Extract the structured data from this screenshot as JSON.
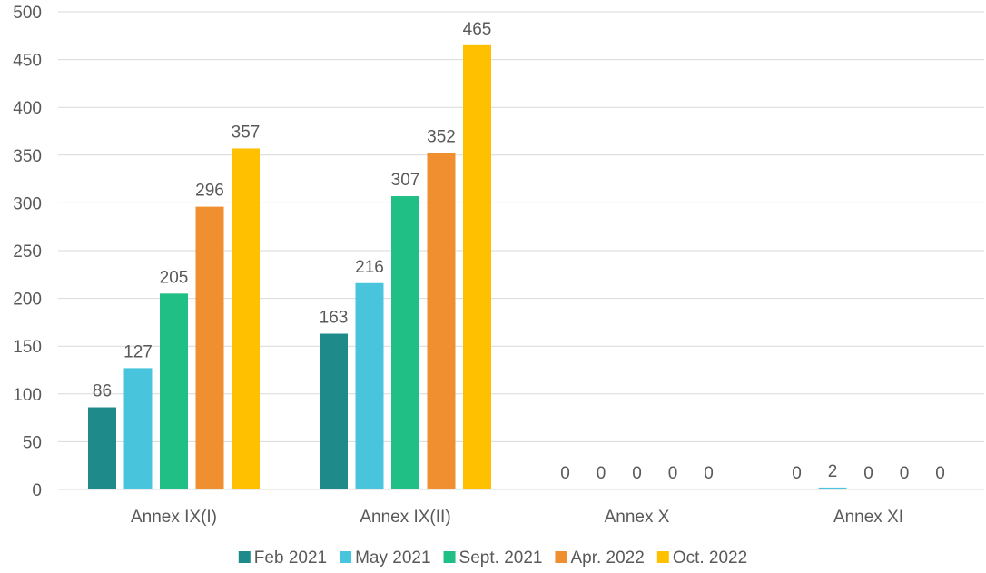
{
  "chart_data": {
    "type": "bar",
    "categories": [
      "Annex IX(I)",
      "Annex IX(II)",
      "Annex X",
      "Annex XI"
    ],
    "series": [
      {
        "name": "Feb 2021",
        "values": [
          86,
          163,
          0,
          0
        ],
        "color": "#1e8a8a"
      },
      {
        "name": "May 2021",
        "values": [
          127,
          216,
          0,
          2
        ],
        "color": "#48c4dc"
      },
      {
        "name": "Sept. 2021",
        "values": [
          205,
          307,
          0,
          0
        ],
        "color": "#1fbf85"
      },
      {
        "name": "Apr. 2022",
        "values": [
          296,
          352,
          0,
          0
        ],
        "color": "#ef8f30"
      },
      {
        "name": "Oct. 2022",
        "values": [
          357,
          465,
          0,
          0
        ],
        "color": "#ffc000"
      }
    ],
    "ylim": [
      0,
      500
    ],
    "yticks": [
      0,
      50,
      100,
      150,
      200,
      250,
      300,
      350,
      400,
      450,
      500
    ],
    "grid": true,
    "legend_position": "bottom",
    "title": "",
    "xlabel": "",
    "ylabel": ""
  }
}
